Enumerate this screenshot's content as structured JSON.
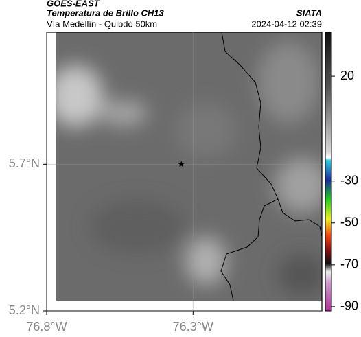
{
  "header": {
    "title": "GOES-EAST",
    "subtitle": "Temperatura de Brillo CH13",
    "region": "Vía Medellín - Quibdó 50km",
    "source": "SIATA",
    "timestamp": "2024-04-12 02:39"
  },
  "map": {
    "xlim": [
      -76.8,
      -75.86
    ],
    "ylim": [
      5.2,
      6.15
    ],
    "xticks": [
      {
        "value": -76.8,
        "label": "76.8°W"
      },
      {
        "value": -76.3,
        "label": "76.3°W"
      }
    ],
    "yticks": [
      {
        "value": 5.2,
        "label": "5.2°N"
      },
      {
        "value": 5.7,
        "label": "5.7°N"
      }
    ],
    "grid": true,
    "marker": {
      "lon": -76.34,
      "lat": 5.7
    }
  },
  "colorbar": {
    "lim": [
      -92,
      41
    ],
    "ticks": [
      20,
      -30,
      -50,
      -70,
      -90
    ]
  }
}
